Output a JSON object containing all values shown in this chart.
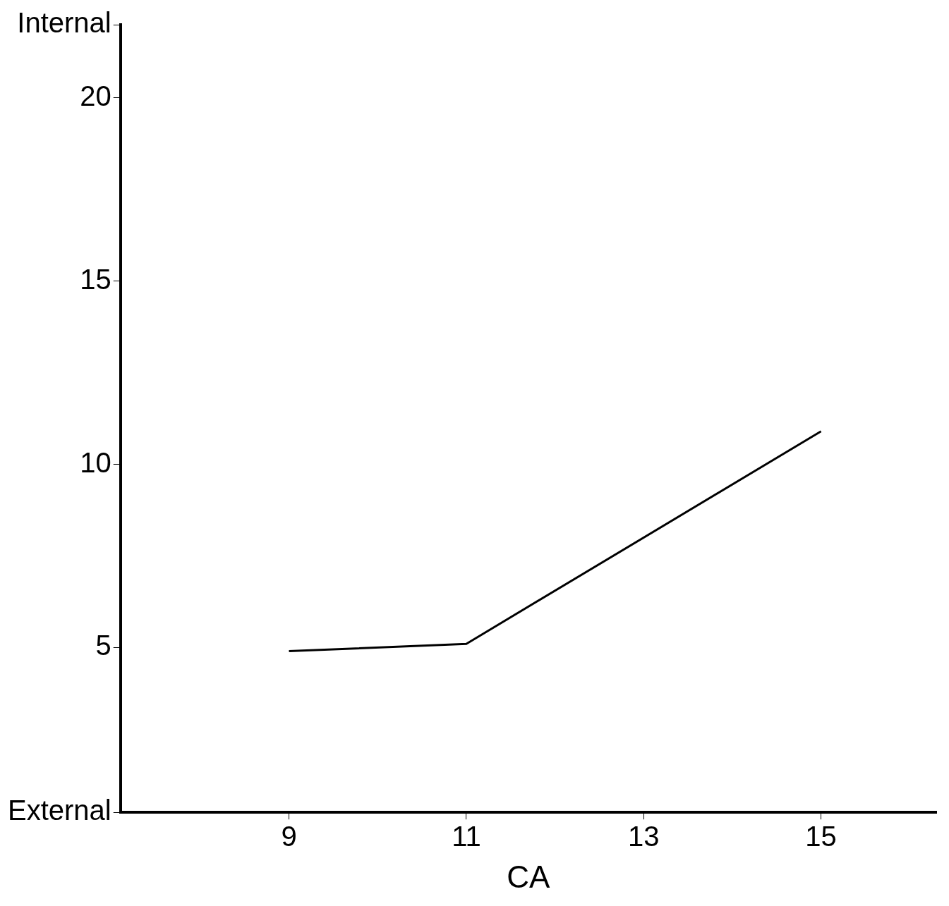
{
  "chart_data": {
    "type": "line",
    "xlabel": "CA",
    "x": [
      9,
      11,
      15
    ],
    "values": [
      4.9,
      5.1,
      10.9
    ],
    "color": "#000000",
    "marker": "none",
    "line_style": "solid",
    "xlim": [
      7.1,
      16.3
    ],
    "xticks": [
      9,
      11,
      13,
      15
    ],
    "ylim": [
      0.5,
      22
    ],
    "yticks": [
      {
        "value": 0.5,
        "label": "External"
      },
      5,
      10,
      15,
      20,
      {
        "value": 22,
        "label": "Internal"
      }
    ],
    "legend": false,
    "grid": false
  }
}
